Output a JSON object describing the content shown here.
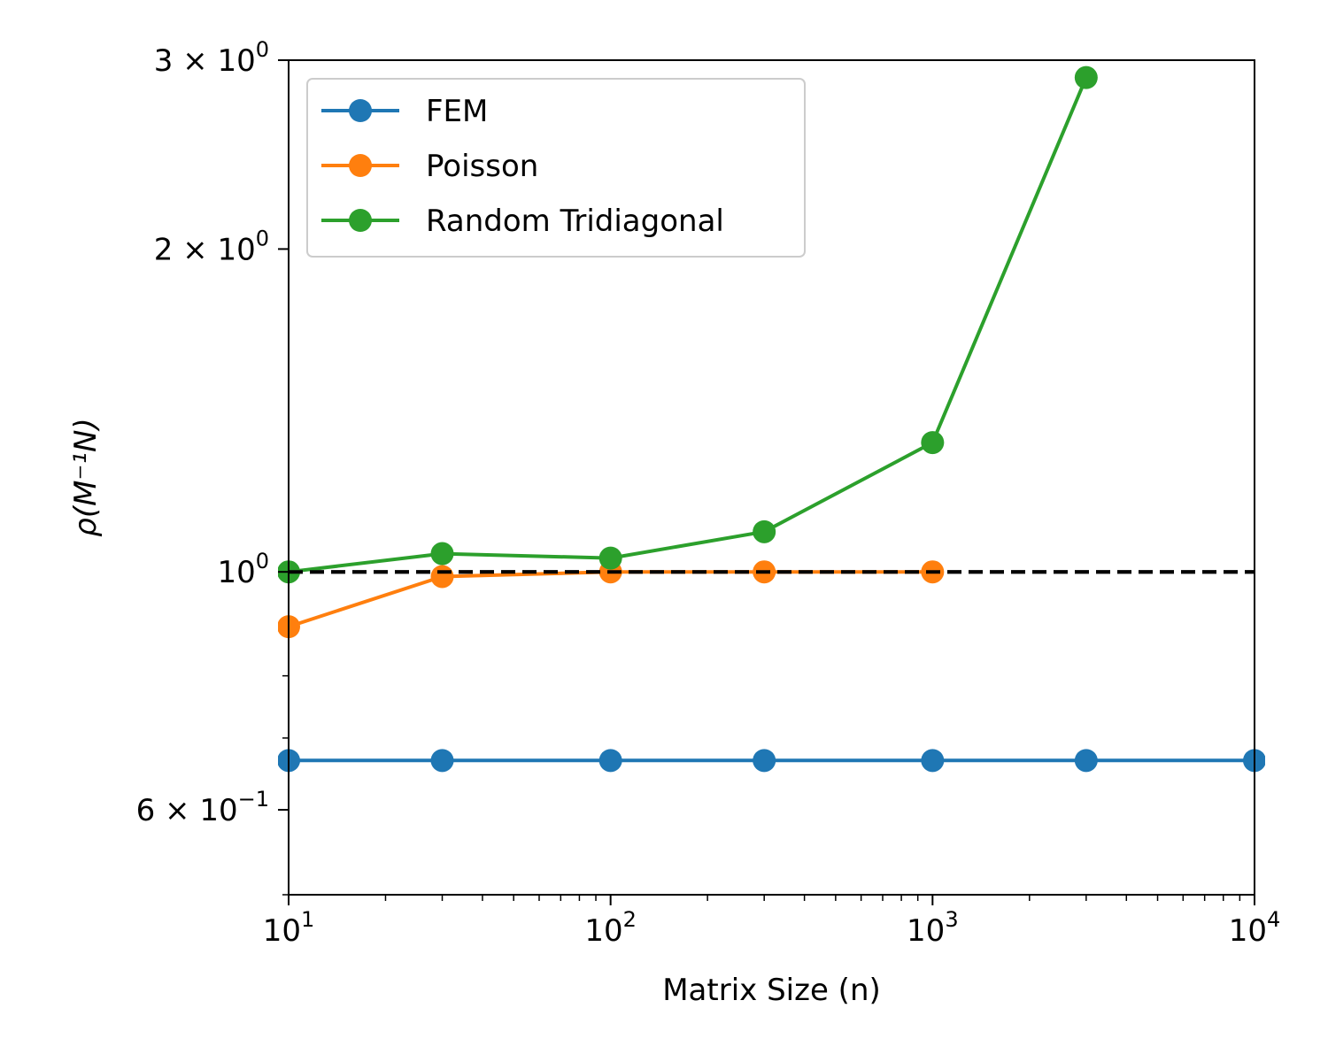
{
  "chart_data": {
    "type": "line",
    "xlabel": "Matrix Size (n)",
    "ylabel": "ρ(M⁻¹N)",
    "xscale": "log",
    "yscale": "log",
    "xlim": [
      10,
      10000
    ],
    "ylim": [
      0.5,
      3
    ],
    "x_ticks": [
      {
        "value": 10,
        "base": "10",
        "exp": "1"
      },
      {
        "value": 100,
        "base": "10",
        "exp": "2"
      },
      {
        "value": 1000,
        "base": "10",
        "exp": "3"
      },
      {
        "value": 10000,
        "base": "10",
        "exp": "4"
      }
    ],
    "y_ticks": [
      {
        "value": 3,
        "mant": "3 × 10",
        "exp": "0"
      },
      {
        "value": 2,
        "mant": "2 × 10",
        "exp": "0"
      },
      {
        "value": 1,
        "mant": "10",
        "exp": "0"
      },
      {
        "value": 0.6,
        "mant": "6 × 10",
        "exp": "−1"
      }
    ],
    "reference_line": {
      "y": 1.0,
      "style": "dashed",
      "color": "#000000"
    },
    "legend_position": "upper-left",
    "series": [
      {
        "name": "FEM",
        "color": "#1f77b4",
        "x": [
          10,
          30,
          100,
          300,
          1000,
          3000,
          10000
        ],
        "y": [
          0.667,
          0.667,
          0.667,
          0.667,
          0.667,
          0.667,
          0.667
        ]
      },
      {
        "name": "Poisson",
        "color": "#ff7f0e",
        "x": [
          10,
          30,
          100,
          300,
          1000
        ],
        "y": [
          0.889,
          0.99,
          1.0,
          1.0,
          1.0
        ]
      },
      {
        "name": "Random Tridiagonal",
        "color": "#2ca02c",
        "x": [
          10,
          30,
          100,
          300,
          1000,
          3000
        ],
        "y": [
          1.0,
          1.04,
          1.03,
          1.09,
          1.32,
          2.89
        ]
      }
    ]
  }
}
